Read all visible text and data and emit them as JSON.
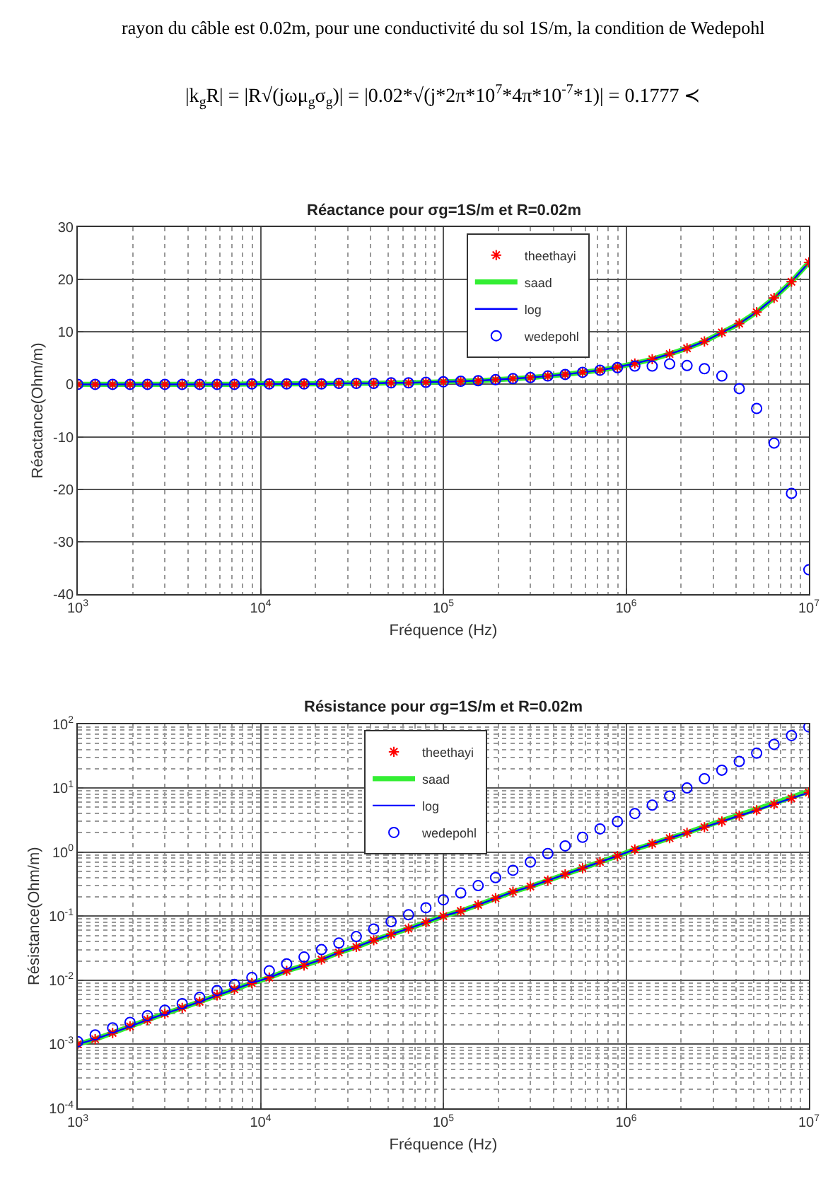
{
  "chart_data": [
    {
      "type": "line",
      "title": "Réactance pour σg=1S/m et R=0.02m",
      "xlabel": "Fréquence (Hz)",
      "ylabel": "Réactance(Ohm/m)",
      "annotations": [
        "rayon du câble est 0.02m, pour une conductivité du sol 1S/m, la condition de Wedepohl",
        "|k$_{g}$R| = |R√(jωμ$_{g}$σ$_{g}$)| = |0.02*√(j*2π*10$^{7}$*4π*10$^{-7}$*1)| = 0.1777 ≺"
      ],
      "log": "x",
      "xlim": [
        1000,
        10000000
      ],
      "xticks": [
        {
          "value": 1000,
          "label": "10$^{3}$"
        },
        {
          "value": 10000,
          "label": "10$^{4}$"
        },
        {
          "value": 100000,
          "label": "10$^{5}$"
        },
        {
          "value": 1000000,
          "label": "10$^{6}$"
        },
        {
          "value": 10000000,
          "label": "10$^{7}$"
        }
      ],
      "ylim": [
        -40,
        30
      ],
      "yticks": [
        -40,
        -30,
        -20,
        -10,
        0,
        10,
        20,
        30
      ],
      "grid": true,
      "legend": "top right",
      "x": [
        1000,
        1245,
        1551,
        1931,
        2405,
        2995,
        3728,
        4642,
        5780,
        7197,
        8963,
        11160,
        13895,
        17302,
        21544,
        26827,
        33405,
        41596,
        51795,
        64495,
        80309,
        100000,
        124520,
        155050,
        193070,
        240410,
        299350,
        372760,
        464160,
        577970,
        719690,
        896150,
        1115900,
        1389500,
        1730200,
        2154400,
        2682700,
        3340500,
        4159600,
        5179500,
        6449500,
        8030900,
        10000000
      ],
      "series": [
        {
          "name": "theethayi",
          "type": "scatter",
          "marker": "cross",
          "color": "#ff0000",
          "values": [
            0.0,
            0.0,
            0.0,
            0.0,
            0.0,
            0.0,
            0.0,
            0.0,
            0.0,
            0.0,
            0.1,
            0.1,
            0.1,
            0.1,
            0.1,
            0.2,
            0.2,
            0.2,
            0.3,
            0.3,
            0.4,
            0.5,
            0.6,
            0.7,
            0.9,
            1.1,
            1.3,
            1.6,
            1.9,
            2.3,
            2.7,
            3.3,
            4.0,
            4.8,
            5.8,
            6.9,
            8.2,
            9.9,
            11.6,
            13.8,
            16.5,
            19.6,
            23.3
          ]
        },
        {
          "name": "saad",
          "marker": "none",
          "color": "#33ee33",
          "values": [
            0.0,
            0.0,
            0.0,
            0.0,
            0.0,
            0.0,
            0.0,
            0.0,
            0.0,
            0.0,
            0.1,
            0.1,
            0.1,
            0.1,
            0.1,
            0.2,
            0.2,
            0.2,
            0.3,
            0.3,
            0.4,
            0.5,
            0.6,
            0.7,
            0.9,
            1.1,
            1.3,
            1.6,
            1.9,
            2.3,
            2.7,
            3.3,
            4.0,
            4.8,
            5.8,
            6.9,
            8.2,
            9.9,
            11.6,
            13.8,
            16.5,
            19.6,
            23.3
          ]
        },
        {
          "name": "log",
          "marker": "none",
          "color": "#0000ff",
          "values": [
            0.0,
            0.0,
            0.0,
            0.0,
            0.0,
            0.0,
            0.0,
            0.0,
            0.0,
            0.0,
            0.1,
            0.1,
            0.1,
            0.1,
            0.1,
            0.2,
            0.2,
            0.2,
            0.3,
            0.3,
            0.4,
            0.5,
            0.6,
            0.7,
            0.9,
            1.1,
            1.3,
            1.6,
            1.9,
            2.3,
            2.7,
            3.3,
            4.0,
            4.8,
            5.8,
            6.9,
            8.2,
            9.9,
            11.6,
            13.8,
            16.5,
            19.6,
            23.3
          ]
        },
        {
          "name": "wedepohl",
          "type": "scatter",
          "marker": "circle",
          "color": "#0000ff",
          "values": [
            0.0,
            0.0,
            0.0,
            0.0,
            0.0,
            0.0,
            0.0,
            0.0,
            0.0,
            0.0,
            0.1,
            0.1,
            0.1,
            0.1,
            0.1,
            0.2,
            0.2,
            0.2,
            0.3,
            0.3,
            0.4,
            0.5,
            0.6,
            0.7,
            0.9,
            1.1,
            1.3,
            1.6,
            1.9,
            2.3,
            2.7,
            3.2,
            3.5,
            3.5,
            3.9,
            3.6,
            3.0,
            1.6,
            -0.8,
            -4.6,
            -11.2,
            -20.8,
            -35.4
          ]
        }
      ]
    },
    {
      "type": "line",
      "title": "Résistance pour σg=1S/m et R=0.02m",
      "xlabel": "Fréquence (Hz)",
      "ylabel": "Résistance(Ohm/m)",
      "log": "xy",
      "xlim": [
        1000,
        10000000
      ],
      "xticks": [
        {
          "value": 1000,
          "label": "10$^{3}$"
        },
        {
          "value": 10000,
          "label": "10$^{4}$"
        },
        {
          "value": 100000,
          "label": "10$^{5}$"
        },
        {
          "value": 1000000,
          "label": "10$^{6}$"
        },
        {
          "value": 10000000,
          "label": "10$^{7}$"
        }
      ],
      "ylim": [
        0.0001,
        100
      ],
      "yticks": [
        {
          "value": 0.0001,
          "label": "10$^{-4}$"
        },
        {
          "value": 0.001,
          "label": "10$^{-3}$"
        },
        {
          "value": 0.01,
          "label": "10$^{-2}$"
        },
        {
          "value": 0.1,
          "label": "10$^{-1}$"
        },
        {
          "value": 1,
          "label": "10$^{0}$"
        },
        {
          "value": 10,
          "label": "10$^{1}$"
        },
        {
          "value": 100,
          "label": "10$^{2}$"
        }
      ],
      "grid": true,
      "legend": "top right",
      "x": [
        1000,
        1245,
        1551,
        1931,
        2405,
        2995,
        3728,
        4642,
        5780,
        7197,
        8963,
        11160,
        13895,
        17302,
        21544,
        26827,
        33405,
        41596,
        51795,
        64495,
        80309,
        100000,
        124520,
        155050,
        193070,
        240410,
        299350,
        372760,
        464160,
        577970,
        719690,
        896150,
        1115900,
        1389500,
        1730200,
        2154400,
        2682700,
        3340500,
        4159600,
        5179500,
        6449500,
        8030900,
        10000000
      ],
      "series": [
        {
          "name": "theethayi",
          "type": "scatter",
          "marker": "cross",
          "color": "#ff0000",
          "values": [
            0.001,
            0.0012,
            0.0015,
            0.0019,
            0.0024,
            0.003,
            0.0037,
            0.0046,
            0.0058,
            0.0072,
            0.009,
            0.011,
            0.014,
            0.017,
            0.021,
            0.027,
            0.033,
            0.042,
            0.052,
            0.064,
            0.08,
            0.1,
            0.12,
            0.15,
            0.19,
            0.24,
            0.29,
            0.36,
            0.45,
            0.56,
            0.7,
            0.87,
            1.1,
            1.35,
            1.65,
            2.0,
            2.45,
            3.0,
            3.7,
            4.5,
            5.6,
            6.9,
            8.5
          ]
        },
        {
          "name": "saad",
          "marker": "none",
          "color": "#33ee33",
          "values": [
            0.001,
            0.0012,
            0.0015,
            0.0019,
            0.0024,
            0.003,
            0.0037,
            0.0046,
            0.0058,
            0.0072,
            0.009,
            0.011,
            0.014,
            0.017,
            0.021,
            0.027,
            0.033,
            0.042,
            0.052,
            0.064,
            0.08,
            0.1,
            0.12,
            0.15,
            0.19,
            0.24,
            0.29,
            0.36,
            0.45,
            0.56,
            0.7,
            0.87,
            1.1,
            1.35,
            1.65,
            2.0,
            2.5,
            3.1,
            3.8,
            4.7,
            5.8,
            7.2,
            8.9
          ]
        },
        {
          "name": "log",
          "marker": "none",
          "color": "#0000ff",
          "values": [
            0.001,
            0.0012,
            0.0015,
            0.0019,
            0.0024,
            0.003,
            0.0037,
            0.0046,
            0.0058,
            0.0072,
            0.009,
            0.011,
            0.014,
            0.017,
            0.021,
            0.027,
            0.033,
            0.042,
            0.052,
            0.064,
            0.08,
            0.1,
            0.12,
            0.15,
            0.19,
            0.24,
            0.29,
            0.36,
            0.45,
            0.56,
            0.7,
            0.87,
            1.1,
            1.35,
            1.65,
            2.0,
            2.45,
            3.0,
            3.7,
            4.5,
            5.6,
            6.9,
            8.5
          ]
        },
        {
          "name": "wedepohl",
          "type": "scatter",
          "marker": "circle",
          "color": "#0000ff",
          "values": [
            0.0011,
            0.0014,
            0.0018,
            0.0022,
            0.0028,
            0.0034,
            0.0043,
            0.0054,
            0.0069,
            0.0086,
            0.011,
            0.014,
            0.018,
            0.023,
            0.03,
            0.038,
            0.048,
            0.063,
            0.082,
            0.105,
            0.135,
            0.18,
            0.23,
            0.3,
            0.4,
            0.52,
            0.7,
            0.95,
            1.25,
            1.7,
            2.3,
            3.0,
            4.0,
            5.4,
            7.5,
            10,
            14,
            19,
            26,
            35,
            48,
            66,
            90
          ]
        }
      ]
    }
  ]
}
